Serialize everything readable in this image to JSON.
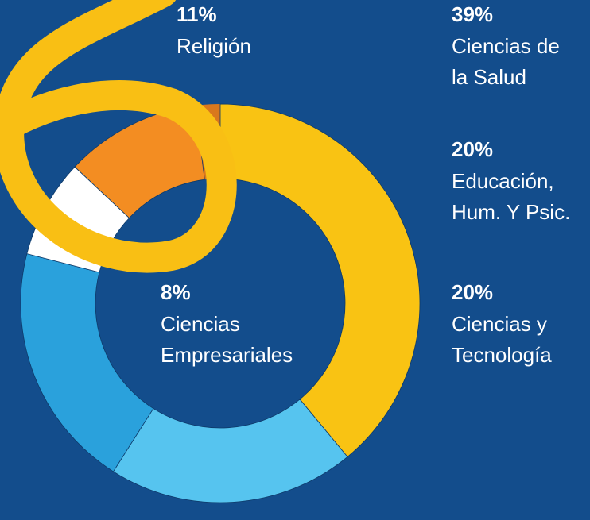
{
  "chart_data": {
    "type": "donut",
    "categories": [
      [
        "Ciencias de",
        "la Salud"
      ],
      [
        "Ciencias y",
        "Tecnología"
      ],
      [
        "Educación,",
        "Hum. Y Psic."
      ],
      [
        "Ciencias",
        "Empresariales"
      ],
      [
        "Religión"
      ]
    ],
    "values": [
      39,
      20,
      20,
      8,
      11
    ],
    "value_labels": [
      "39%",
      "20%",
      "20%",
      "8%",
      "11%"
    ],
    "colors": [
      "#f9c313",
      "#56c4ef",
      "#2aa1dc",
      "#ffffff",
      "#f38d22"
    ]
  }
}
